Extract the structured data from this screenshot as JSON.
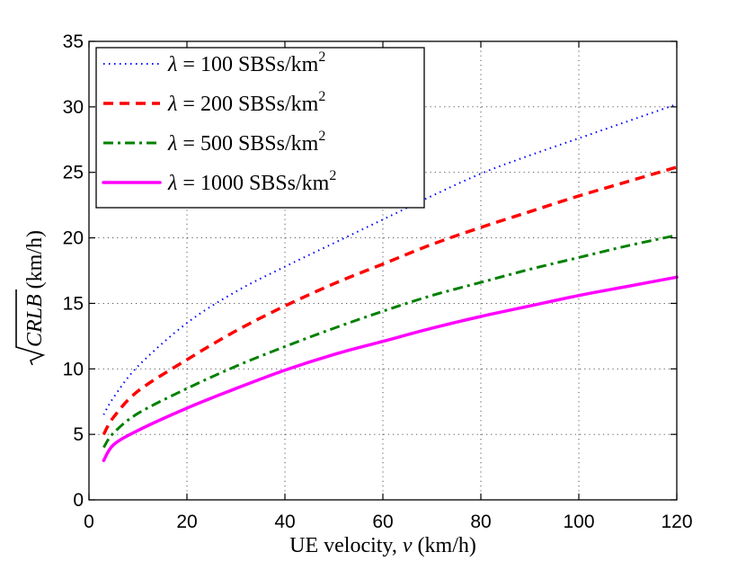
{
  "chart_data": {
    "type": "line",
    "title": "",
    "xlabel": {
      "prefix": "UE velocity, ",
      "var": "v",
      "suffix": " (km/h)"
    },
    "ylabel": {
      "var": "CRLB",
      "suffix": " (km/h)"
    },
    "xlim": [
      0,
      120
    ],
    "ylim": [
      0,
      35
    ],
    "xticks": [
      0,
      20,
      40,
      60,
      80,
      100,
      120
    ],
    "yticks": [
      0,
      5,
      10,
      15,
      20,
      25,
      30,
      35
    ],
    "grid": true,
    "legend_position": "top-left",
    "x": [
      3,
      5,
      10,
      20,
      30,
      40,
      50,
      60,
      70,
      80,
      90,
      100,
      110,
      120
    ],
    "series": [
      {
        "name": "λ = 100 SBSs/km²",
        "lambda": "100",
        "color": "#0000ff",
        "style": "dotted",
        "values": [
          6.5,
          7.8,
          10.2,
          13.5,
          15.9,
          17.8,
          19.6,
          21.4,
          23.2,
          24.9,
          26.3,
          27.6,
          28.9,
          30.2
        ]
      },
      {
        "name": "λ = 200 SBSs/km²",
        "lambda": "200",
        "color": "#ff0000",
        "style": "dashed",
        "values": [
          5.0,
          6.3,
          8.3,
          10.7,
          12.9,
          14.8,
          16.5,
          18.0,
          19.5,
          20.8,
          22.0,
          23.2,
          24.3,
          25.4
        ]
      },
      {
        "name": "λ = 500 SBSs/km²",
        "lambda": "500",
        "color": "#008000",
        "style": "dashdot",
        "values": [
          4.0,
          5.1,
          6.6,
          8.5,
          10.2,
          11.7,
          13.1,
          14.4,
          15.6,
          16.6,
          17.6,
          18.5,
          19.4,
          20.2
        ]
      },
      {
        "name": "λ = 1000 SBSs/km²",
        "lambda": "1000",
        "color": "#ff00ff",
        "style": "solid",
        "values": [
          3.0,
          4.2,
          5.3,
          7.0,
          8.5,
          9.9,
          11.1,
          12.1,
          13.1,
          14.0,
          14.8,
          15.6,
          16.3,
          17.0
        ]
      }
    ],
    "legend_unit": "SBSs/km",
    "legend_exp": "2"
  }
}
